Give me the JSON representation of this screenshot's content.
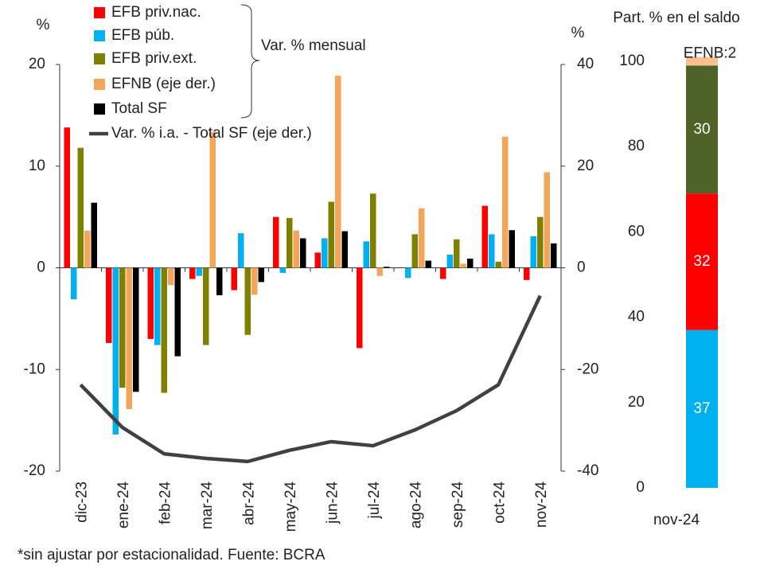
{
  "chart_data": [
    {
      "type": "bar",
      "ylabel": "%",
      "y2label": "%",
      "annotation": "Var. % mensual",
      "note": "*sin ajustar por estacionalidad. Fuente: BCRA",
      "categories": [
        "dic-23",
        "ene-24",
        "feb-24",
        "mar-24",
        "abr-24",
        "may-24",
        "jun-24",
        "jul-24",
        "ago-24",
        "sep-24",
        "oct-24",
        "nov-24"
      ],
      "ylim": [
        -20,
        20
      ],
      "yticks": [
        -20,
        -10,
        0,
        10,
        20
      ],
      "y2lim": [
        -40,
        40
      ],
      "y2ticks": [
        -40,
        -20,
        0,
        20,
        40
      ],
      "series": [
        {
          "name": "EFB priv.nac.",
          "color": "#ff0000",
          "values": [
            13.8,
            -7.4,
            -7.0,
            -1.1,
            -2.2,
            5.0,
            1.5,
            -7.9,
            0,
            -1.1,
            6.1,
            -1.2
          ]
        },
        {
          "name": "EFB púb.",
          "color": "#00b0f0",
          "values": [
            -3.1,
            -16.4,
            -7.6,
            -0.8,
            3.4,
            -0.5,
            2.9,
            2.6,
            -1.0,
            1.3,
            3.3,
            3.1
          ]
        },
        {
          "name": "EFB priv.ext.",
          "color": "#808000",
          "values": [
            11.8,
            -11.8,
            -12.3,
            -7.6,
            -6.6,
            4.9,
            6.5,
            7.3,
            3.3,
            2.8,
            0.6,
            5.0
          ]
        },
        {
          "name": "EFNB (eje der.)",
          "color": "#f5a55a",
          "axis": "y2",
          "values": [
            7.3,
            -27.8,
            -3.4,
            26.7,
            -5.3,
            7.3,
            37.8,
            -1.6,
            11.7,
            0.8,
            25.8,
            18.8
          ]
        },
        {
          "name": "Total SF",
          "color": "#000000",
          "values": [
            6.4,
            -12.2,
            -8.7,
            -2.7,
            -1.4,
            2.9,
            3.6,
            0.1,
            0.7,
            0.9,
            3.7,
            2.4
          ]
        },
        {
          "name": "Var. % i.a. - Total SF (eje der.)",
          "color": "#404040",
          "axis": "y2",
          "type": "line",
          "values": [
            -23,
            -31.4,
            -36.6,
            -37.5,
            -38.1,
            -35.9,
            -34.2,
            -35,
            -31.9,
            -28.1,
            -23,
            -5.5
          ]
        }
      ]
    },
    {
      "type": "stacked_bar",
      "title": "Part. % en el saldo",
      "categories": [
        "nov-24"
      ],
      "ylim": [
        0,
        100
      ],
      "yticks": [
        0,
        20,
        40,
        60,
        80,
        100
      ],
      "series": [
        {
          "name": "EFB púb.",
          "color": "#00b0f0",
          "values": [
            37
          ]
        },
        {
          "name": "EFB priv.nac.",
          "color": "#ff0000",
          "values": [
            32
          ]
        },
        {
          "name": "EFB priv.ext.",
          "color": "#4f6228",
          "values": [
            30
          ]
        },
        {
          "name": "EFNB",
          "color": "#fac090",
          "values": [
            2
          ],
          "value_labels": [
            "EFNB:2"
          ]
        }
      ]
    }
  ]
}
